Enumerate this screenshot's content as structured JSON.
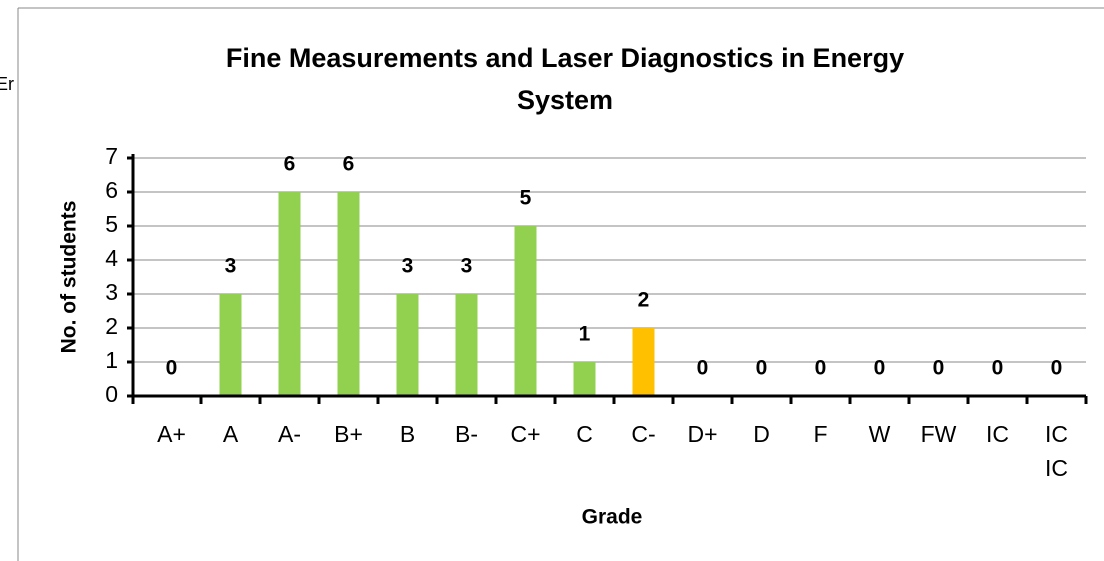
{
  "chart_data": {
    "type": "bar",
    "title": "Fine Measurements and Laser Diagnostics in Energy System",
    "annotation": "Er",
    "x_label": "Grade",
    "y_label": "No. of students",
    "categories": [
      "A+",
      "A",
      "A-",
      "B+",
      "B",
      "B-",
      "C+",
      "C",
      "C-",
      "D+",
      "D",
      "F",
      "W",
      "FW",
      "IC",
      "IC IC"
    ],
    "values": [
      0,
      3,
      6,
      6,
      3,
      3,
      5,
      1,
      2,
      0,
      0,
      0,
      0,
      0,
      0,
      0
    ],
    "colors": [
      "#92d050",
      "#92d050",
      "#92d050",
      "#92d050",
      "#92d050",
      "#92d050",
      "#92d050",
      "#92d050",
      "#ffc000",
      "#92d050",
      "#92d050",
      "#92d050",
      "#92d050",
      "#92d050",
      "#92d050",
      "#92d050"
    ],
    "ylim": [
      0,
      7
    ],
    "yticks": [
      0,
      1,
      2,
      3,
      4,
      5,
      6,
      7
    ],
    "grid": true
  }
}
